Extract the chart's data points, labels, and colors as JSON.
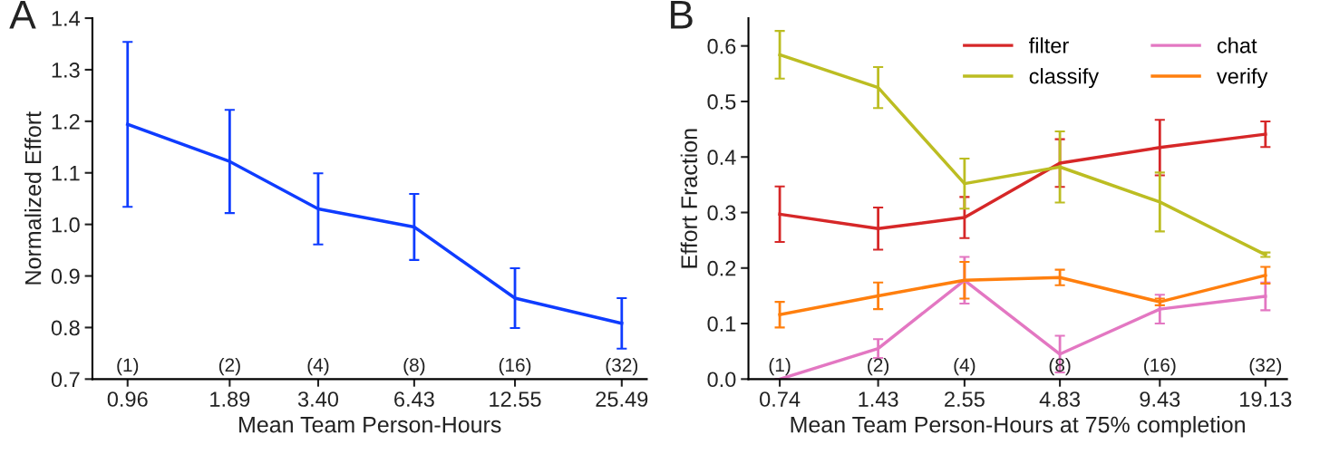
{
  "chart_data": [
    {
      "type": "line",
      "xlabel": "Mean Team Person-Hours",
      "ylabel": "Normalized Effort",
      "log": "x",
      "x": [
        0.96,
        1.89,
        3.4,
        6.43,
        12.55,
        25.49
      ],
      "series": [
        {
          "color": "#0f3cff",
          "values": [
            1.194,
            1.122,
            1.03,
            0.995,
            0.857,
            0.808
          ],
          "errors": [
            0.16,
            0.1,
            0.069,
            0.064,
            0.058,
            0.049
          ]
        }
      ],
      "xlim": [
        0.76,
        30.1
      ],
      "xticks": [
        0.96,
        1.89,
        {
          "value": 3.4,
          "label": "3.40"
        },
        6.43,
        12.55,
        25.49
      ],
      "ylim": [
        0.7,
        1.4
      ],
      "yticks": [
        {
          "value": 0.7,
          "label": "0.7"
        },
        {
          "value": 0.8,
          "label": "0.8"
        },
        {
          "value": 0.9,
          "label": "0.9"
        },
        {
          "value": 1.0,
          "label": "1.0"
        },
        {
          "value": 1.1,
          "label": "1.1"
        },
        {
          "value": 1.2,
          "label": "1.2"
        },
        {
          "value": 1.3,
          "label": "1.3"
        },
        {
          "value": 1.4,
          "label": "1.4"
        }
      ],
      "grid": false,
      "legend": false,
      "annotations": [
        "A",
        "(1)",
        "(2)",
        "(4)",
        "(8)",
        "(16)",
        "(32)"
      ]
    },
    {
      "type": "line",
      "xlabel": "Mean Team Person-Hours at 75% completion",
      "ylabel": "Effort Fraction",
      "log": "x",
      "x": [
        0.74,
        1.43,
        2.55,
        4.83,
        9.43,
        19.13
      ],
      "series": [
        {
          "name": "filter",
          "color": "#d62728",
          "values": [
            0.297,
            0.271,
            0.291,
            0.389,
            0.417,
            0.441
          ],
          "errors": [
            0.05,
            0.038,
            0.037,
            0.043,
            0.05,
            0.023
          ]
        },
        {
          "name": "classify",
          "color": "#bcbd22",
          "values": [
            0.584,
            0.525,
            0.352,
            0.382,
            0.319,
            0.224
          ],
          "errors": [
            0.043,
            0.037,
            0.045,
            0.064,
            0.053,
            0.004
          ]
        },
        {
          "name": "chat",
          "color": "#e377c2",
          "values": [
            0.0,
            0.055,
            0.178,
            0.045,
            0.126,
            0.149
          ],
          "errors": [
            null,
            0.017,
            0.042,
            0.033,
            0.026,
            0.025
          ]
        },
        {
          "name": "verify",
          "color": "#ff7f0e",
          "values": [
            0.116,
            0.15,
            0.178,
            0.183,
            0.139,
            0.187
          ],
          "errors": [
            0.023,
            0.024,
            0.033,
            0.014,
            0.006,
            0.015
          ]
        }
      ],
      "xlim": [
        0.6,
        22.1
      ],
      "xticks": [
        0.74,
        1.43,
        2.55,
        4.83,
        9.43,
        19.13
      ],
      "ylim": [
        0,
        0.65
      ],
      "yticks": [
        {
          "value": 0,
          "label": "0.0"
        },
        0.1,
        0.2,
        0.3,
        0.4,
        0.5,
        0.6
      ],
      "grid": false,
      "legend": "top right",
      "annotations": [
        "B",
        "(1)",
        "(2)",
        "(4)",
        "(8)",
        "(16)",
        "(32)"
      ]
    }
  ]
}
